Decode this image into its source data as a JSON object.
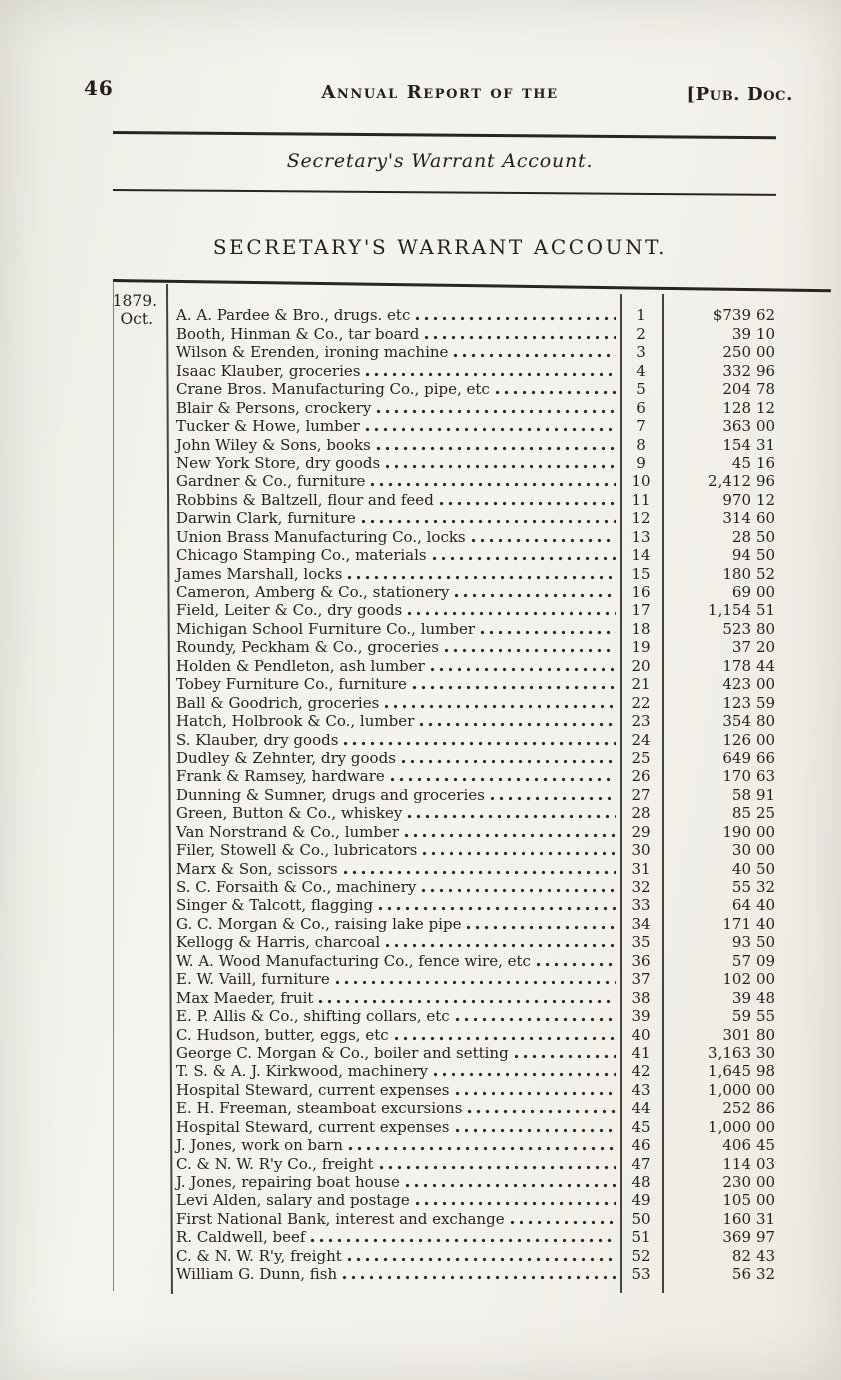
{
  "page": {
    "number": "46",
    "running_header": "Annual Report of the",
    "header_right": "[Pub. Doc.",
    "section_title": "Secretary's Warrant Account.",
    "main_heading": "SECRETARY'S WARRANT ACCOUNT."
  },
  "table": {
    "year": "1879.",
    "month": "Oct.",
    "columns": [
      "payee",
      "warrant_number",
      "amount_dollars",
      "amount_cents"
    ],
    "rows": [
      {
        "payee": "A. A. Pardee & Bro., drugs. etc",
        "no": "1",
        "dollars": "$739",
        "cents": "62"
      },
      {
        "payee": "Booth, Hinman & Co., tar board",
        "no": "2",
        "dollars": "39",
        "cents": "10"
      },
      {
        "payee": "Wilson & Erenden, ironing machine",
        "no": "3",
        "dollars": "250",
        "cents": "00"
      },
      {
        "payee": "Isaac Klauber, groceries",
        "no": "4",
        "dollars": "332",
        "cents": "96"
      },
      {
        "payee": "Crane Bros. Manufacturing Co., pipe, etc",
        "no": "5",
        "dollars": "204",
        "cents": "78"
      },
      {
        "payee": "Blair & Persons, crockery",
        "no": "6",
        "dollars": "128",
        "cents": "12"
      },
      {
        "payee": "Tucker & Howe, lumber",
        "no": "7",
        "dollars": "363",
        "cents": "00"
      },
      {
        "payee": "John Wiley & Sons, books",
        "no": "8",
        "dollars": "154",
        "cents": "31"
      },
      {
        "payee": "New York Store, dry goods",
        "no": "9",
        "dollars": "45",
        "cents": "16"
      },
      {
        "payee": "Gardner & Co., furniture",
        "no": "10",
        "dollars": "2,412",
        "cents": "96"
      },
      {
        "payee": "Robbins & Baltzell, flour and feed",
        "no": "11",
        "dollars": "970",
        "cents": "12"
      },
      {
        "payee": "Darwin Clark, furniture",
        "no": "12",
        "dollars": "314",
        "cents": "60"
      },
      {
        "payee": "Union Brass Manufacturing Co., locks",
        "no": "13",
        "dollars": "28",
        "cents": "50"
      },
      {
        "payee": "Chicago Stamping Co., materials",
        "no": "14",
        "dollars": "94",
        "cents": "50"
      },
      {
        "payee": "James Marshall, locks",
        "no": "15",
        "dollars": "180",
        "cents": "52"
      },
      {
        "payee": "Cameron, Amberg & Co., stationery",
        "no": "16",
        "dollars": "69",
        "cents": "00"
      },
      {
        "payee": "Field, Leiter & Co., dry goods",
        "no": "17",
        "dollars": "1,154",
        "cents": "51"
      },
      {
        "payee": "Michigan School Furniture Co., lumber",
        "no": "18",
        "dollars": "523",
        "cents": "80"
      },
      {
        "payee": "Roundy, Peckham & Co., groceries",
        "no": "19",
        "dollars": "37",
        "cents": "20"
      },
      {
        "payee": "Holden & Pendleton, ash lumber",
        "no": "20",
        "dollars": "178",
        "cents": "44"
      },
      {
        "payee": "Tobey Furniture Co., furniture",
        "no": "21",
        "dollars": "423",
        "cents": "00"
      },
      {
        "payee": "Ball & Goodrich, groceries",
        "no": "22",
        "dollars": "123",
        "cents": "59"
      },
      {
        "payee": "Hatch, Holbrook & Co., lumber",
        "no": "23",
        "dollars": "354",
        "cents": "80"
      },
      {
        "payee": "S. Klauber, dry goods",
        "no": "24",
        "dollars": "126",
        "cents": "00"
      },
      {
        "payee": "Dudley & Zehnter, dry goods",
        "no": "25",
        "dollars": "649",
        "cents": "66"
      },
      {
        "payee": "Frank & Ramsey, hardware",
        "no": "26",
        "dollars": "170",
        "cents": "63"
      },
      {
        "payee": "Dunning & Sumner, drugs and groceries",
        "no": "27",
        "dollars": "58",
        "cents": "91"
      },
      {
        "payee": "Green, Button & Co., whiskey",
        "no": "28",
        "dollars": "85",
        "cents": "25"
      },
      {
        "payee": "Van Norstrand & Co., lumber",
        "no": "29",
        "dollars": "190",
        "cents": "00"
      },
      {
        "payee": "Filer, Stowell & Co., lubricators",
        "no": "30",
        "dollars": "30",
        "cents": "00"
      },
      {
        "payee": "Marx & Son, scissors",
        "no": "31",
        "dollars": "40",
        "cents": "50"
      },
      {
        "payee": "S. C. Forsaith & Co., machinery",
        "no": "32",
        "dollars": "55",
        "cents": "32"
      },
      {
        "payee": "Singer & Talcott, flagging",
        "no": "33",
        "dollars": "64",
        "cents": "40"
      },
      {
        "payee": "G. C. Morgan & Co., raising lake pipe",
        "no": "34",
        "dollars": "171",
        "cents": "40"
      },
      {
        "payee": "Kellogg & Harris, charcoal",
        "no": "35",
        "dollars": "93",
        "cents": "50"
      },
      {
        "payee": "W. A. Wood Manufacturing Co., fence wire, etc",
        "no": "36",
        "dollars": "57",
        "cents": "09"
      },
      {
        "payee": "E. W. Vaill, furniture",
        "no": "37",
        "dollars": "102",
        "cents": "00"
      },
      {
        "payee": "Max Maeder, fruit",
        "no": "38",
        "dollars": "39",
        "cents": "48"
      },
      {
        "payee": "E. P. Allis & Co., shifting collars, etc",
        "no": "39",
        "dollars": "59",
        "cents": "55"
      },
      {
        "payee": "C. Hudson, butter, eggs, etc",
        "no": "40",
        "dollars": "301",
        "cents": "80"
      },
      {
        "payee": "George C. Morgan & Co., boiler and setting",
        "no": "41",
        "dollars": "3,163",
        "cents": "30"
      },
      {
        "payee": "T. S. & A. J. Kirkwood, machinery",
        "no": "42",
        "dollars": "1,645",
        "cents": "98"
      },
      {
        "payee": "Hospital Steward, current expenses",
        "no": "43",
        "dollars": "1,000",
        "cents": "00"
      },
      {
        "payee": "E. H. Freeman, steamboat excursions",
        "no": "44",
        "dollars": "252",
        "cents": "86"
      },
      {
        "payee": "Hospital Steward, current expenses",
        "no": "45",
        "dollars": "1,000",
        "cents": "00"
      },
      {
        "payee": "J. Jones, work on barn",
        "no": "46",
        "dollars": "406",
        "cents": "45"
      },
      {
        "payee": "C. & N. W. R'y Co., freight",
        "no": "47",
        "dollars": "114",
        "cents": "03"
      },
      {
        "payee": "J. Jones, repairing boat house",
        "no": "48",
        "dollars": "230",
        "cents": "00"
      },
      {
        "payee": "Levi Alden, salary and postage",
        "no": "49",
        "dollars": "105",
        "cents": "00"
      },
      {
        "payee": "First National Bank, interest and exchange",
        "no": "50",
        "dollars": "160",
        "cents": "31"
      },
      {
        "payee": "R. Caldwell, beef",
        "no": "51",
        "dollars": "369",
        "cents": "97"
      },
      {
        "payee": "C. & N. W. R'y, freight",
        "no": "52",
        "dollars": "82",
        "cents": "43"
      },
      {
        "payee": "William G. Dunn, fish",
        "no": "53",
        "dollars": "56",
        "cents": "32"
      }
    ]
  }
}
